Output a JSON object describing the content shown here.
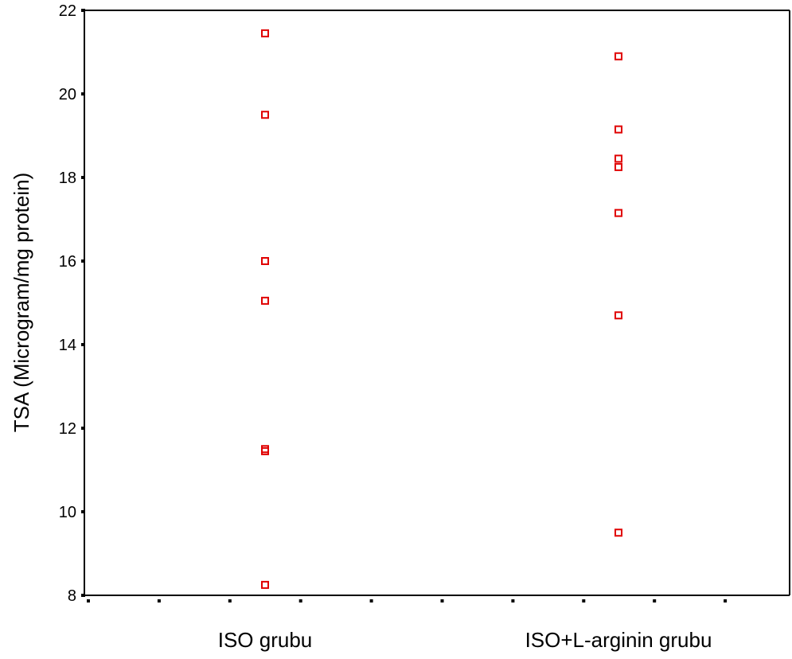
{
  "chart_data": {
    "type": "scatter",
    "title": "",
    "xlabel": "",
    "ylabel": "TSA (Microgram/mg protein)",
    "categories": [
      "ISO grubu",
      "ISO+L-arginin grubu"
    ],
    "yticks": [
      8,
      10,
      12,
      14,
      16,
      18,
      20,
      22
    ],
    "ylim": [
      8,
      22
    ],
    "grid": false,
    "legend": "none",
    "series": [
      {
        "category": "ISO grubu",
        "values": [
          21.45,
          19.5,
          16.0,
          15.05,
          11.5,
          11.45,
          8.25
        ]
      },
      {
        "category": "ISO+L-arginin grubu",
        "values": [
          20.9,
          19.15,
          18.45,
          18.25,
          17.15,
          14.7,
          9.5
        ]
      }
    ],
    "colors": {
      "marker": "#e00000",
      "axis": "#000000"
    }
  }
}
